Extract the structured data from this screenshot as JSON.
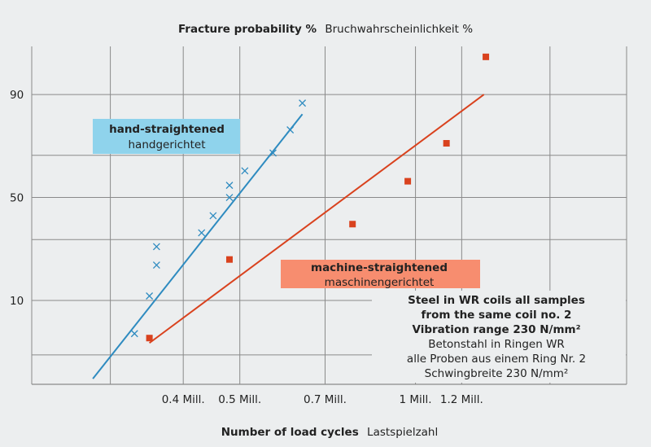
{
  "chart_data": {
    "type": "scatter",
    "title_bold": "Fracture probability %",
    "title_rest": "Bruchwahrscheinlichkeit %",
    "xlabel_bold": "Number of load cycles",
    "xlabel_rest": "Lastspielzahl",
    "x_scale": "log",
    "y_scale": "probability",
    "xlim": [
      0.22,
      2.3
    ],
    "ylim": [
      1,
      97
    ],
    "x_ticks": [
      {
        "value": 0.4,
        "label": "0.4 Mill."
      },
      {
        "value": 0.5,
        "label": "0.5 Mill."
      },
      {
        "value": 0.7,
        "label": "0.7 Mill."
      },
      {
        "value": 1.0,
        "label": "1 Mill."
      },
      {
        "value": 1.2,
        "label": "1.2 Mill."
      }
    ],
    "y_ticks": [
      {
        "value": 10,
        "label": "10"
      },
      {
        "value": 50,
        "label": "50"
      },
      {
        "value": 90,
        "label": "90"
      }
    ],
    "grid": true,
    "series": [
      {
        "name": "hand-straightened",
        "name_de": "handgerichtet",
        "color": "#2e8bc0",
        "marker": "x",
        "label_bg": "#8fd3ec",
        "points": [
          [
            0.33,
            4.5
          ],
          [
            0.35,
            11
          ],
          [
            0.36,
            20
          ],
          [
            0.36,
            27
          ],
          [
            0.43,
            33
          ],
          [
            0.45,
            41
          ],
          [
            0.48,
            50
          ],
          [
            0.48,
            56
          ],
          [
            0.51,
            63
          ],
          [
            0.57,
            71
          ],
          [
            0.61,
            80
          ],
          [
            0.64,
            88
          ]
        ],
        "fit": [
          [
            0.28,
            1.2
          ],
          [
            0.64,
            85
          ]
        ]
      },
      {
        "name": "machine-straightened",
        "name_de": "maschinengerichtet",
        "color": "#d9421e",
        "marker": "square",
        "label_bg": "#f78d6f",
        "points": [
          [
            0.35,
            4
          ],
          [
            0.48,
            22
          ],
          [
            0.78,
            37
          ],
          [
            0.97,
            58
          ],
          [
            1.13,
            75
          ],
          [
            1.32,
            96
          ]
        ],
        "fit": [
          [
            0.35,
            3.5
          ],
          [
            1.31,
            90
          ]
        ]
      }
    ],
    "annotation_lines": [
      "Steel in WR coils all samples",
      "from the same coil no. 2",
      "Vibration range 230 N/mm²",
      "Betonstahl in Ringen WR",
      "alle Proben aus einem Ring Nr. 2",
      "Schwingbreite 230 N/mm²"
    ],
    "annotation_bold_count": 3
  }
}
